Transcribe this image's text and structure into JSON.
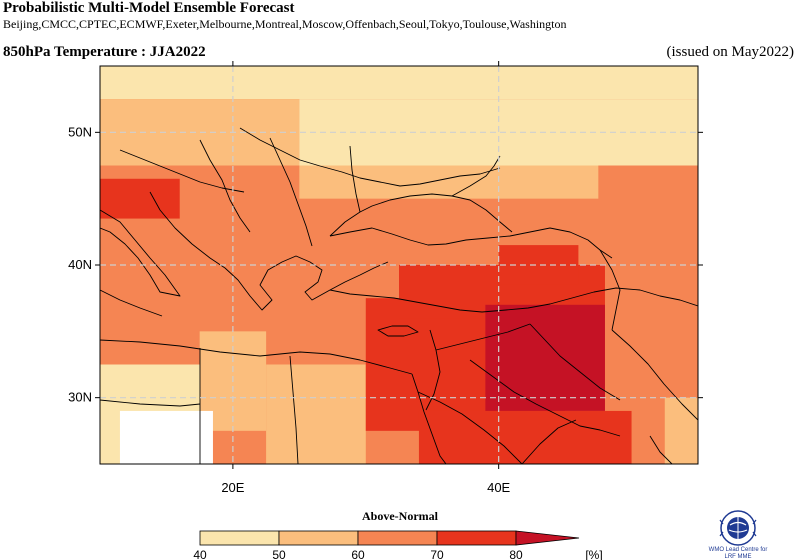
{
  "header": {
    "title": "Probabilistic Multi-Model Ensemble Forecast",
    "centres": "Beijing,CMCC,CPTEC,ECMWF,Exeter,Melbourne,Montreal,Moscow,Offenbach,Seoul,Tokyo,Toulouse,Washington",
    "variable": "850hPa Temperature : JJA2022",
    "issued": "(issued on May2022)"
  },
  "map": {
    "extent": {
      "lon": [
        10,
        55
      ],
      "lat": [
        25,
        55
      ]
    },
    "lat_ticks": [
      {
        "value": 50,
        "label": "50N"
      },
      {
        "value": 40,
        "label": "40N"
      },
      {
        "value": 30,
        "label": "30N"
      }
    ],
    "lon_ticks": [
      {
        "value": 20,
        "label": "20E"
      },
      {
        "value": 40,
        "label": "40E"
      }
    ],
    "grid_step_deg": 2.5,
    "default_class": 2,
    "regions": [
      {
        "class": 0,
        "lon": [
          10,
          55
        ],
        "lat": [
          52.5,
          55
        ]
      },
      {
        "class": 1,
        "lon": [
          10,
          25
        ],
        "lat": [
          47.5,
          52.5
        ]
      },
      {
        "class": 0,
        "lon": [
          25,
          55
        ],
        "lat": [
          47.5,
          52.5
        ]
      },
      {
        "class": 1,
        "lon": [
          25,
          47.5
        ],
        "lat": [
          45,
          47.5
        ]
      },
      {
        "class": 3,
        "lon": [
          10,
          16
        ],
        "lat": [
          43.5,
          46.5
        ]
      },
      {
        "class": 0,
        "lon": [
          10,
          17.5
        ],
        "lat": [
          25,
          32.5
        ]
      },
      {
        "class": 1,
        "lon": [
          17.5,
          22.5
        ],
        "lat": [
          27.5,
          35
        ]
      },
      {
        "class": 1,
        "lon": [
          22.5,
          30
        ],
        "lat": [
          25,
          32.5
        ]
      },
      {
        "class": 3,
        "lon": [
          30,
          45
        ],
        "lat": [
          27.5,
          37.5
        ]
      },
      {
        "class": 3,
        "lon": [
          32.5,
          48
        ],
        "lat": [
          36,
          40
        ]
      },
      {
        "class": 4,
        "lon": [
          39,
          48
        ],
        "lat": [
          29,
          37
        ]
      },
      {
        "class": 3,
        "lon": [
          40,
          46
        ],
        "lat": [
          38.5,
          41.5
        ]
      },
      {
        "class": 3,
        "lon": [
          34,
          50
        ],
        "lat": [
          25,
          29
        ]
      },
      {
        "class": 1,
        "lon": [
          52.5,
          55
        ],
        "lat": [
          25,
          30
        ]
      }
    ],
    "white_regions": [
      {
        "lon": [
          11.5,
          18.5
        ],
        "lat": [
          25,
          29
        ]
      }
    ]
  },
  "colorbar": {
    "title": "Above-Normal",
    "ticks": [
      "40",
      "50",
      "60",
      "70",
      "80"
    ],
    "unit": "[%]",
    "colors": [
      "#fbe5ad",
      "#fbbe7d",
      "#f58553",
      "#e7341d",
      "#c51225"
    ]
  },
  "logo": {
    "icon": "wmo-emblem-icon",
    "line1": "WMO Lead Centre for",
    "line2": "LRF MME"
  }
}
